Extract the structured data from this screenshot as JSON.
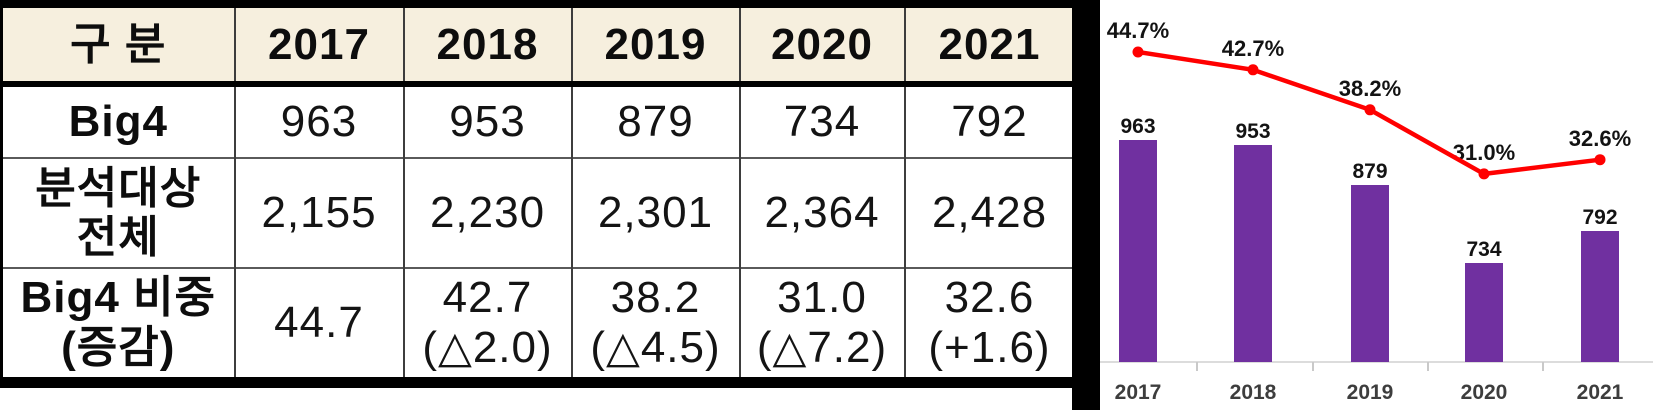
{
  "colors": {
    "table_header_bg": "#F6EFDE",
    "bar_purple": "#7030A0",
    "line_red": "#FF0000"
  },
  "table": {
    "columns": [
      "구 분",
      "2017",
      "2018",
      "2019",
      "2020",
      "2021"
    ],
    "rows": [
      {
        "label_lines": [
          "Big4"
        ],
        "cells": [
          [
            "963"
          ],
          [
            "953"
          ],
          [
            "879"
          ],
          [
            "734"
          ],
          [
            "792"
          ]
        ]
      },
      {
        "label_lines": [
          "분석대상",
          "전체"
        ],
        "cells": [
          [
            "2,155"
          ],
          [
            "2,230"
          ],
          [
            "2,301"
          ],
          [
            "2,364"
          ],
          [
            "2,428"
          ]
        ]
      },
      {
        "label_lines": [
          "Big4 비중",
          "(증감)"
        ],
        "cells": [
          [
            "44.7"
          ],
          [
            "42.7",
            "(△2.0)"
          ],
          [
            "38.2",
            "(△4.5)"
          ],
          [
            "31.0",
            "(△7.2)"
          ],
          [
            "32.6",
            "(+1.6)"
          ]
        ]
      }
    ]
  },
  "chart_data": {
    "type": "bar",
    "combo": "bar+line",
    "title": "",
    "xlabel": "",
    "ylabel": "",
    "legend": false,
    "gridlines": false,
    "categories": [
      "2017",
      "2018",
      "2019",
      "2020",
      "2021"
    ],
    "series": [
      {
        "name": "big4-count-bars",
        "type": "bar",
        "color": "#7030A0",
        "values": [
          963,
          953,
          879,
          734,
          792
        ],
        "labels": [
          "963",
          "953",
          "879",
          "734",
          "792"
        ]
      },
      {
        "name": "big4-share-line",
        "type": "line",
        "color": "#FF0000",
        "values": [
          44.7,
          42.7,
          38.2,
          31.0,
          32.6
        ],
        "labels": [
          "44.7%",
          "42.7%",
          "38.2%",
          "31.0%",
          "32.6%"
        ]
      }
    ],
    "bar_axis_hidden_min": 550
  }
}
